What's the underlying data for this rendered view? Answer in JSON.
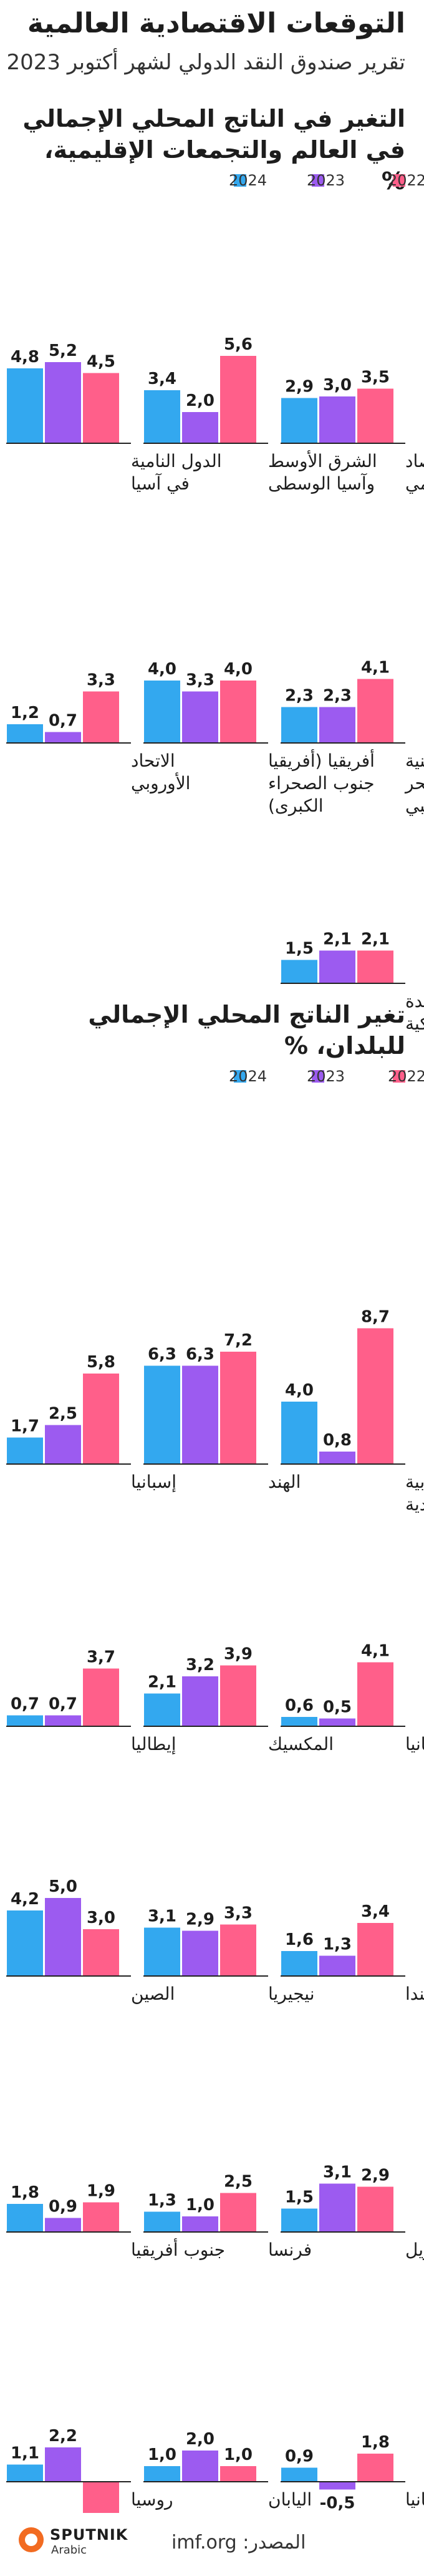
{
  "header": {
    "title": "التوقعات الاقتصادية العالمية",
    "subtitle": "تقرير صندوق النقد الدولي لشهر أكتوبر 2023"
  },
  "colors": {
    "y2024": "#33a8ef",
    "y2023": "#9c5bf0",
    "y2022": "#ff5f8a"
  },
  "chart_data": [
    {
      "type": "bar",
      "title": "التغير في الناتج المحلي الإجمالي في العالم والتجمعات الإقليمية، %",
      "legend": [
        "2024",
        "2023",
        "2022"
      ],
      "series_names": [
        "2024",
        "2023",
        "2022"
      ],
      "groups": [
        {
          "label": [
            "الاقتصاد",
            "العالمي"
          ],
          "values": [
            2.9,
            3.0,
            3.5
          ],
          "display": [
            "2,9",
            "3,0",
            "3,5"
          ]
        },
        {
          "label": [
            "الشرق الأوسط",
            "وآسيا الوسطى"
          ],
          "values": [
            3.4,
            2.0,
            5.6
          ],
          "display": [
            "3,4",
            "2,0",
            "5,6"
          ]
        },
        {
          "label": [
            "الدول النامية",
            "في آسيا"
          ],
          "values": [
            4.8,
            5.2,
            4.5
          ],
          "display": [
            "4,8",
            "5,2",
            "4,5"
          ]
        },
        {
          "label": [
            "أمريكا اللاتينية",
            "ومنطقة البحر",
            "الكاريبي"
          ],
          "values": [
            2.3,
            2.3,
            4.1
          ],
          "display": [
            "2,3",
            "2,3",
            "4,1"
          ]
        },
        {
          "label": [
            "أفريقيا (أفريقيا",
            "جنوب الصحراء",
            "الكبرى)"
          ],
          "values": [
            4.0,
            3.3,
            4.0
          ],
          "display": [
            "4,0",
            "3,3",
            "4,0"
          ]
        },
        {
          "label": [
            "الاتحاد",
            "الأوروبي"
          ],
          "values": [
            1.2,
            0.7,
            3.3
          ],
          "display": [
            "1,2",
            "0,7",
            "3,3"
          ]
        },
        {
          "label": [
            "الولايات المتحدة",
            "الأمريكية"
          ],
          "values": [
            1.5,
            2.1,
            2.1
          ],
          "display": [
            "1,5",
            "2,1",
            "2,1"
          ]
        }
      ]
    },
    {
      "type": "bar",
      "title": "تغير الناتج المحلي الإجمالي للبلدان، %",
      "legend": [
        "2024",
        "2023",
        "2022"
      ],
      "series_names": [
        "2024",
        "2023",
        "2022"
      ],
      "groups": [
        {
          "label": [
            "المملكة العربية",
            "السعودية"
          ],
          "values": [
            4.0,
            0.8,
            8.7
          ],
          "display": [
            "4,0",
            "0,8",
            "8,7"
          ]
        },
        {
          "label": [
            "الهند"
          ],
          "values": [
            6.3,
            6.3,
            7.2
          ],
          "display": [
            "6,3",
            "6,3",
            "7,2"
          ]
        },
        {
          "label": [
            "إسبانيا"
          ],
          "values": [
            1.7,
            2.5,
            5.8
          ],
          "display": [
            "1,7",
            "2,5",
            "5,8"
          ]
        },
        {
          "label": [
            "بريطانيا"
          ],
          "values": [
            0.6,
            0.5,
            4.1
          ],
          "display": [
            "0,6",
            "0,5",
            "4,1"
          ]
        },
        {
          "label": [
            "المكسيك"
          ],
          "values": [
            2.1,
            3.2,
            3.9
          ],
          "display": [
            "2,1",
            "3,2",
            "3,9"
          ]
        },
        {
          "label": [
            "إيطاليا"
          ],
          "values": [
            0.7,
            0.7,
            3.7
          ],
          "display": [
            "0,7",
            "0,7",
            "3,7"
          ]
        },
        {
          "label": [
            "كندا"
          ],
          "values": [
            1.6,
            1.3,
            3.4
          ],
          "display": [
            "1,6",
            "1,3",
            "3,4"
          ]
        },
        {
          "label": [
            "نيجيريا"
          ],
          "values": [
            3.1,
            2.9,
            3.3
          ],
          "display": [
            "3,1",
            "2,9",
            "3,3"
          ]
        },
        {
          "label": [
            "الصين"
          ],
          "values": [
            4.2,
            5.0,
            3.0
          ],
          "display": [
            "4,2",
            "5,0",
            "3,0"
          ]
        },
        {
          "label": [
            "البرازيل"
          ],
          "values": [
            1.5,
            3.1,
            2.9
          ],
          "display": [
            "1,5",
            "3,1",
            "2,9"
          ]
        },
        {
          "label": [
            "فرنسا"
          ],
          "values": [
            1.3,
            1.0,
            2.5
          ],
          "display": [
            "1,3",
            "1,0",
            "2,5"
          ]
        },
        {
          "label": [
            "جنوب أفريقيا"
          ],
          "values": [
            1.8,
            0.9,
            1.9
          ],
          "display": [
            "1,8",
            "0,9",
            "1,9"
          ]
        },
        {
          "label": [
            "ألمانيا"
          ],
          "values": [
            0.9,
            -0.5,
            1.8
          ],
          "display": [
            "0,9",
            "-0,5",
            "1,8"
          ]
        },
        {
          "label": [
            "اليابان"
          ],
          "values": [
            1.0,
            2.0,
            1.0
          ],
          "display": [
            "1,0",
            "2,0",
            "1,0"
          ]
        },
        {
          "label": [
            "روسيا"
          ],
          "values": [
            1.1,
            2.2,
            -2.1
          ],
          "display": [
            "1,1",
            "2,2",
            "-2,1"
          ]
        }
      ]
    }
  ],
  "footer": {
    "source": "المصدر: imf.org",
    "logo_name": "SPUTNIK",
    "logo_sub": "Arabic"
  }
}
